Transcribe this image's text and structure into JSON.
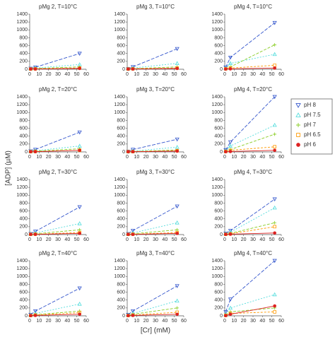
{
  "y_label": "[ADP] (µM)",
  "x_label": "[Cr] (mM)",
  "chart_data": [
    {
      "type": "line",
      "title": "pMg 2, T=10°C",
      "x": [
        1,
        6,
        53
      ],
      "xlim": [
        0,
        60
      ],
      "xticks": [
        0,
        10,
        20,
        30,
        40,
        50,
        60
      ],
      "ylim": [
        0,
        1400
      ],
      "yticks": [
        0,
        200,
        400,
        600,
        800,
        1000,
        1200,
        1400
      ],
      "series": [
        {
          "name": "pH 8",
          "color": "#3355cc",
          "marker": "triangle-down",
          "values": [
            20,
            50,
            400
          ]
        },
        {
          "name": "pH 7.5",
          "color": "#55dddd",
          "marker": "triangle-up",
          "values": [
            10,
            30,
            120
          ]
        },
        {
          "name": "pH 7",
          "color": "#88cc22",
          "marker": "plus",
          "values": [
            5,
            20,
            60
          ]
        },
        {
          "name": "pH 6.5",
          "color": "#ff9900",
          "marker": "square",
          "values": [
            5,
            10,
            30
          ]
        },
        {
          "name": "pH 6",
          "color": "#dd2222",
          "marker": "circle",
          "values": [
            5,
            5,
            20
          ]
        }
      ]
    },
    {
      "type": "line",
      "title": "pMg 3, T=10°C",
      "x": [
        1,
        6,
        53
      ],
      "xlim": [
        0,
        60
      ],
      "xticks": [
        0,
        10,
        20,
        30,
        40,
        50,
        60
      ],
      "ylim": [
        0,
        1400
      ],
      "yticks": [
        0,
        200,
        400,
        600,
        800,
        1000,
        1200,
        1400
      ],
      "series": [
        {
          "name": "pH 8",
          "color": "#3355cc",
          "marker": "triangle-down",
          "values": [
            10,
            60,
            520
          ]
        },
        {
          "name": "pH 7.5",
          "color": "#55dddd",
          "marker": "triangle-up",
          "values": [
            10,
            30,
            150
          ]
        },
        {
          "name": "pH 7",
          "color": "#88cc22",
          "marker": "plus",
          "values": [
            5,
            15,
            60
          ]
        },
        {
          "name": "pH 6.5",
          "color": "#ff9900",
          "marker": "square",
          "values": [
            5,
            10,
            30
          ]
        },
        {
          "name": "pH 6",
          "color": "#dd2222",
          "marker": "circle",
          "values": [
            5,
            5,
            20
          ]
        }
      ]
    },
    {
      "type": "line",
      "title": "pMg 4, T=10°C",
      "x": [
        1,
        6,
        53
      ],
      "xlim": [
        0,
        60
      ],
      "xticks": [
        0,
        10,
        20,
        30,
        40,
        50,
        60
      ],
      "ylim": [
        0,
        1400
      ],
      "yticks": [
        0,
        200,
        400,
        600,
        800,
        1000,
        1200,
        1400
      ],
      "series": [
        {
          "name": "pH 8",
          "color": "#3355cc",
          "marker": "triangle-down",
          "values": [
            50,
            300,
            1180
          ]
        },
        {
          "name": "pH 7.5",
          "color": "#55dddd",
          "marker": "triangle-up",
          "values": [
            30,
            150,
            380
          ]
        },
        {
          "name": "pH 7",
          "color": "#88cc22",
          "marker": "plus",
          "values": [
            10,
            60,
            620
          ]
        },
        {
          "name": "pH 6.5",
          "color": "#ff9900",
          "marker": "square",
          "values": [
            10,
            30,
            100
          ]
        },
        {
          "name": "pH 6",
          "color": "#dd2222",
          "marker": "circle",
          "values": [
            5,
            10,
            30
          ]
        }
      ]
    },
    {
      "type": "line",
      "title": "pMg 2, T=20°C",
      "x": [
        1,
        6,
        53
      ],
      "xlim": [
        0,
        60
      ],
      "xticks": [
        0,
        10,
        20,
        30,
        40,
        50,
        60
      ],
      "ylim": [
        0,
        1400
      ],
      "yticks": [
        0,
        200,
        400,
        600,
        800,
        1000,
        1200,
        1400
      ],
      "series": [
        {
          "name": "pH 8",
          "color": "#3355cc",
          "marker": "triangle-down",
          "values": [
            20,
            60,
            500
          ]
        },
        {
          "name": "pH 7.5",
          "color": "#55dddd",
          "marker": "triangle-up",
          "values": [
            10,
            30,
            150
          ]
        },
        {
          "name": "pH 7",
          "color": "#88cc22",
          "marker": "plus",
          "values": [
            5,
            20,
            80
          ]
        },
        {
          "name": "pH 6.5",
          "color": "#ff9900",
          "marker": "square",
          "values": [
            5,
            10,
            40
          ]
        },
        {
          "name": "pH 6",
          "color": "#dd2222",
          "marker": "circle",
          "values": [
            5,
            5,
            40
          ]
        }
      ]
    },
    {
      "type": "line",
      "title": "pMg 3, T=20°C",
      "x": [
        1,
        6,
        53
      ],
      "xlim": [
        0,
        60
      ],
      "xticks": [
        0,
        10,
        20,
        30,
        40,
        50,
        60
      ],
      "ylim": [
        0,
        1400
      ],
      "yticks": [
        0,
        200,
        400,
        600,
        800,
        1000,
        1200,
        1400
      ],
      "series": [
        {
          "name": "pH 8",
          "color": "#3355cc",
          "marker": "triangle-down",
          "values": [
            10,
            60,
            320
          ]
        },
        {
          "name": "pH 7.5",
          "color": "#55dddd",
          "marker": "triangle-up",
          "values": [
            5,
            20,
            120
          ]
        },
        {
          "name": "pH 7",
          "color": "#88cc22",
          "marker": "plus",
          "values": [
            5,
            10,
            50
          ]
        },
        {
          "name": "pH 6.5",
          "color": "#ff9900",
          "marker": "square",
          "values": [
            5,
            5,
            30
          ]
        },
        {
          "name": "pH 6",
          "color": "#dd2222",
          "marker": "circle",
          "values": [
            5,
            5,
            20
          ]
        }
      ]
    },
    {
      "type": "line",
      "title": "pMg 4, T=20°C",
      "x": [
        1,
        6,
        53
      ],
      "xlim": [
        0,
        60
      ],
      "xticks": [
        0,
        10,
        20,
        30,
        40,
        50,
        60
      ],
      "ylim": [
        0,
        1400
      ],
      "yticks": [
        0,
        200,
        400,
        600,
        800,
        1000,
        1200,
        1400
      ],
      "series": [
        {
          "name": "pH 8",
          "color": "#3355cc",
          "marker": "triangle-down",
          "values": [
            50,
            250,
            1400
          ]
        },
        {
          "name": "pH 7.5",
          "color": "#55dddd",
          "marker": "triangle-up",
          "values": [
            30,
            150,
            680
          ]
        },
        {
          "name": "pH 7",
          "color": "#88cc22",
          "marker": "plus",
          "values": [
            20,
            60,
            450
          ]
        },
        {
          "name": "pH 6.5",
          "color": "#ff9900",
          "marker": "square",
          "values": [
            10,
            40,
            130
          ]
        },
        {
          "name": "pH 6",
          "color": "#dd2222",
          "marker": "circle",
          "values": [
            5,
            10,
            40
          ]
        }
      ]
    },
    {
      "type": "line",
      "title": "pMg 2, T=30°C",
      "x": [
        1,
        6,
        53
      ],
      "xlim": [
        0,
        60
      ],
      "xticks": [
        0,
        10,
        20,
        30,
        40,
        50,
        60
      ],
      "ylim": [
        0,
        1400
      ],
      "yticks": [
        0,
        200,
        400,
        600,
        800,
        1000,
        1200,
        1400
      ],
      "series": [
        {
          "name": "pH 8",
          "color": "#3355cc",
          "marker": "triangle-down",
          "values": [
            20,
            80,
            700
          ]
        },
        {
          "name": "pH 7.5",
          "color": "#55dddd",
          "marker": "triangle-up",
          "values": [
            10,
            40,
            280
          ]
        },
        {
          "name": "pH 7",
          "color": "#88cc22",
          "marker": "plus",
          "values": [
            5,
            20,
            120
          ]
        },
        {
          "name": "pH 6.5",
          "color": "#ff9900",
          "marker": "square",
          "values": [
            5,
            10,
            50
          ]
        },
        {
          "name": "pH 6",
          "color": "#dd2222",
          "marker": "circle",
          "values": [
            5,
            5,
            30
          ]
        }
      ]
    },
    {
      "type": "line",
      "title": "pMg 3, T=30°C",
      "x": [
        1,
        6,
        53
      ],
      "xlim": [
        0,
        60
      ],
      "xticks": [
        0,
        10,
        20,
        30,
        40,
        50,
        60
      ],
      "ylim": [
        0,
        1400
      ],
      "yticks": [
        0,
        200,
        400,
        600,
        800,
        1000,
        1200,
        1400
      ],
      "series": [
        {
          "name": "pH 8",
          "color": "#3355cc",
          "marker": "triangle-down",
          "values": [
            20,
            100,
            720
          ]
        },
        {
          "name": "pH 7.5",
          "color": "#55dddd",
          "marker": "triangle-up",
          "values": [
            10,
            40,
            300
          ]
        },
        {
          "name": "pH 7",
          "color": "#88cc22",
          "marker": "plus",
          "values": [
            5,
            20,
            120
          ]
        },
        {
          "name": "pH 6.5",
          "color": "#ff9900",
          "marker": "square",
          "values": [
            5,
            10,
            50
          ]
        },
        {
          "name": "pH 6",
          "color": "#dd2222",
          "marker": "circle",
          "values": [
            5,
            5,
            30
          ]
        }
      ]
    },
    {
      "type": "line",
      "title": "pMg 4, T=30°C",
      "x": [
        1,
        6,
        53
      ],
      "xlim": [
        0,
        60
      ],
      "xticks": [
        0,
        10,
        20,
        30,
        40,
        50,
        60
      ],
      "ylim": [
        0,
        1400
      ],
      "yticks": [
        0,
        200,
        400,
        600,
        800,
        1000,
        1200,
        1400
      ],
      "series": [
        {
          "name": "pH 8",
          "color": "#3355cc",
          "marker": "triangle-down",
          "values": [
            30,
            100,
            900
          ]
        },
        {
          "name": "pH 7.5",
          "color": "#55dddd",
          "marker": "triangle-up",
          "values": [
            20,
            60,
            680
          ]
        },
        {
          "name": "pH 7",
          "color": "#88cc22",
          "marker": "plus",
          "values": [
            10,
            30,
            300
          ]
        },
        {
          "name": "pH 6.5",
          "color": "#ff9900",
          "marker": "square",
          "values": [
            5,
            20,
            200
          ]
        },
        {
          "name": "pH 6",
          "color": "#dd2222",
          "marker": "circle",
          "values": [
            5,
            10,
            40
          ]
        }
      ]
    },
    {
      "type": "line",
      "title": "pMg 2, T=40°C",
      "x": [
        1,
        6,
        53
      ],
      "xlim": [
        0,
        60
      ],
      "xticks": [
        0,
        10,
        20,
        30,
        40,
        50,
        60
      ],
      "ylim": [
        0,
        1400
      ],
      "yticks": [
        0,
        200,
        400,
        600,
        800,
        1000,
        1200,
        1400
      ],
      "series": [
        {
          "name": "pH 8",
          "color": "#3355cc",
          "marker": "triangle-down",
          "values": [
            30,
            120,
            700
          ]
        },
        {
          "name": "pH 7.5",
          "color": "#55dddd",
          "marker": "triangle-up",
          "values": [
            20,
            60,
            300
          ]
        },
        {
          "name": "pH 7",
          "color": "#88cc22",
          "marker": "plus",
          "values": [
            10,
            30,
            120
          ]
        },
        {
          "name": "pH 6.5",
          "color": "#ff9900",
          "marker": "square",
          "values": [
            5,
            20,
            80
          ]
        },
        {
          "name": "pH 6",
          "color": "#dd2222",
          "marker": "circle",
          "values": [
            5,
            10,
            40
          ]
        }
      ]
    },
    {
      "type": "line",
      "title": "pMg 3, T=40°C",
      "x": [
        1,
        6,
        53
      ],
      "xlim": [
        0,
        60
      ],
      "xticks": [
        0,
        10,
        20,
        30,
        40,
        50,
        60
      ],
      "ylim": [
        0,
        1400
      ],
      "yticks": [
        0,
        200,
        400,
        600,
        800,
        1000,
        1200,
        1400
      ],
      "series": [
        {
          "name": "pH 8",
          "color": "#3355cc",
          "marker": "triangle-down",
          "values": [
            30,
            120,
            760
          ]
        },
        {
          "name": "pH 7.5",
          "color": "#55dddd",
          "marker": "triangle-up",
          "values": [
            20,
            60,
            380
          ]
        },
        {
          "name": "pH 7",
          "color": "#88cc22",
          "marker": "plus",
          "values": [
            10,
            40,
            200
          ]
        },
        {
          "name": "pH 6.5",
          "color": "#ff9900",
          "marker": "square",
          "values": [
            5,
            20,
            90
          ]
        },
        {
          "name": "pH 6",
          "color": "#dd2222",
          "marker": "circle",
          "values": [
            5,
            10,
            40
          ]
        }
      ]
    },
    {
      "type": "line",
      "title": "pMg 4, T=40°C",
      "x": [
        1,
        6,
        53
      ],
      "xlim": [
        0,
        60
      ],
      "xticks": [
        0,
        10,
        20,
        30,
        40,
        50,
        60
      ],
      "ylim": [
        0,
        1400
      ],
      "yticks": [
        0,
        200,
        400,
        600,
        800,
        1000,
        1200,
        1400
      ],
      "series": [
        {
          "name": "pH 8",
          "color": "#3355cc",
          "marker": "triangle-down",
          "values": [
            100,
            420,
            1400
          ]
        },
        {
          "name": "pH 7.5",
          "color": "#55dddd",
          "marker": "triangle-up",
          "values": [
            40,
            200,
            540
          ]
        },
        {
          "name": "pH 7",
          "color": "#88cc22",
          "marker": "plus",
          "values": [
            20,
            100,
            200
          ]
        },
        {
          "name": "pH 6.5",
          "color": "#ff9900",
          "marker": "square",
          "values": [
            10,
            60,
            100
          ]
        },
        {
          "name": "pH 6",
          "color": "#dd2222",
          "marker": "circle",
          "values": [
            5,
            40,
            250
          ]
        }
      ]
    }
  ]
}
